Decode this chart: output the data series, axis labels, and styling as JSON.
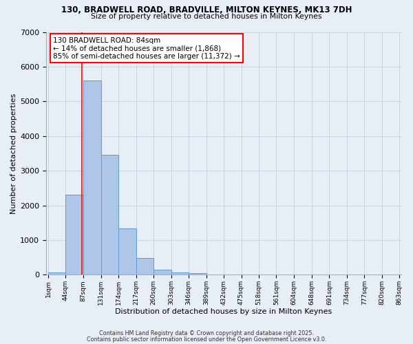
{
  "title1": "130, BRADWELL ROAD, BRADVILLE, MILTON KEYNES, MK13 7DH",
  "title2": "Size of property relative to detached houses in Milton Keynes",
  "xlabel": "Distribution of detached houses by size in Milton Keynes",
  "ylabel": "Number of detached properties",
  "bar_edges": [
    1,
    44,
    87,
    131,
    174,
    217,
    260,
    303,
    346,
    389,
    432,
    475,
    518,
    561,
    604,
    648,
    691,
    734,
    777,
    820,
    863
  ],
  "bar_heights": [
    75,
    2300,
    5600,
    3450,
    1330,
    480,
    155,
    70,
    50,
    0,
    0,
    0,
    0,
    0,
    0,
    0,
    0,
    0,
    0,
    0
  ],
  "bar_color": "#aec6e8",
  "bar_edge_color": "#5b9bd5",
  "property_size": 84,
  "red_line_color": "#ff0000",
  "annotation_line1": "130 BRADWELL ROAD: 84sqm",
  "annotation_line2": "← 14% of detached houses are smaller (1,868)",
  "annotation_line3": "85% of semi-detached houses are larger (11,372) →",
  "annotation_box_color": "#ffffff",
  "annotation_border_color": "#ff0000",
  "ylim": [
    0,
    7000
  ],
  "yticks": [
    0,
    1000,
    2000,
    3000,
    4000,
    5000,
    6000,
    7000
  ],
  "grid_color": "#c8d4e3",
  "bg_color": "#e8eef5",
  "footnote1": "Contains HM Land Registry data © Crown copyright and database right 2025.",
  "footnote2": "Contains public sector information licensed under the Open Government Licence v3.0."
}
